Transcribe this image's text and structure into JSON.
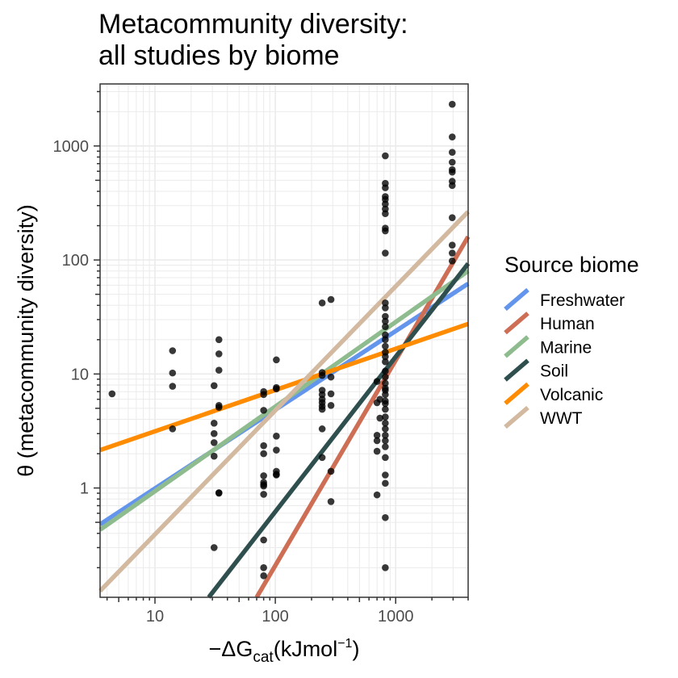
{
  "chart_data": {
    "type": "scatter",
    "title_line1": "Metacommunity diversity:",
    "title_line2": "all studies by biome",
    "xlabel": {
      "prefix": "−ΔG",
      "sub": "cat",
      "mid": "(kJmol",
      "sup": "−1",
      "suffix": ")"
    },
    "ylabel": "θ (metacommunity diversity)",
    "x_scale": "log10",
    "y_scale": "log10",
    "xlim": [
      3.5,
      4000
    ],
    "ylim": [
      0.11,
      3500
    ],
    "x_ticks": [
      10,
      100,
      1000
    ],
    "x_tick_labels": [
      "10",
      "100",
      "1000"
    ],
    "y_ticks": [
      1,
      10,
      100,
      1000
    ],
    "y_tick_labels": [
      "1",
      "10",
      "100",
      "1000"
    ],
    "grid": true,
    "legend_title": "Source biome",
    "legend_position": "right",
    "series": [
      {
        "name": "Freshwater",
        "color": "#6495ED",
        "line": [
          [
            3.5,
            0.48
          ],
          [
            4000,
            62
          ]
        ]
      },
      {
        "name": "Human",
        "color": "#CD6E55",
        "line": [
          [
            70,
            0.11
          ],
          [
            4000,
            160
          ]
        ]
      },
      {
        "name": "Marine",
        "color": "#8FBC8F",
        "line": [
          [
            3.5,
            0.43
          ],
          [
            4000,
            80
          ]
        ]
      },
      {
        "name": "Soil",
        "color": "#2F4F4F",
        "line": [
          [
            28,
            0.11
          ],
          [
            4000,
            93
          ]
        ]
      },
      {
        "name": "Volcanic",
        "color": "#FF8C00",
        "line": [
          [
            3.5,
            2.15
          ],
          [
            4000,
            27.5
          ]
        ]
      },
      {
        "name": "WWT",
        "color": "#D2B9A0",
        "line": [
          [
            3.5,
            0.125
          ],
          [
            4000,
            265
          ]
        ]
      }
    ],
    "points": [
      [
        4.4,
        6.7
      ],
      [
        14,
        16
      ],
      [
        14,
        10.2
      ],
      [
        14,
        7.8
      ],
      [
        14,
        3.3
      ],
      [
        31,
        7.9
      ],
      [
        31,
        3.7
      ],
      [
        31,
        3.0
      ],
      [
        31,
        2.5
      ],
      [
        31,
        1.9
      ],
      [
        31,
        0.3
      ],
      [
        34,
        20
      ],
      [
        34,
        15
      ],
      [
        34,
        10.8
      ],
      [
        34,
        5.3
      ],
      [
        34,
        5.1
      ],
      [
        34,
        0.91
      ],
      [
        34,
        0.9
      ],
      [
        80,
        7.0
      ],
      [
        80,
        6.6
      ],
      [
        80,
        4.8
      ],
      [
        80,
        2.35
      ],
      [
        80,
        2.0
      ],
      [
        80,
        1.28
      ],
      [
        80,
        1.12
      ],
      [
        80,
        1.07
      ],
      [
        80,
        1.04
      ],
      [
        80,
        0.88
      ],
      [
        80,
        0.35
      ],
      [
        80,
        0.2
      ],
      [
        80,
        0.17
      ],
      [
        102,
        13.3
      ],
      [
        102,
        7.6
      ],
      [
        102,
        7.4
      ],
      [
        102,
        2.85
      ],
      [
        102,
        2.15
      ],
      [
        102,
        1.4
      ],
      [
        102,
        1.32
      ],
      [
        102,
        1.3
      ],
      [
        245,
        42
      ],
      [
        245,
        10.3
      ],
      [
        245,
        9.7
      ],
      [
        245,
        7.2
      ],
      [
        245,
        6.6
      ],
      [
        245,
        6.0
      ],
      [
        245,
        5.6
      ],
      [
        245,
        5.2
      ],
      [
        245,
        4.9
      ],
      [
        245,
        3.3
      ],
      [
        245,
        1.85
      ],
      [
        290,
        45
      ],
      [
        290,
        9.4
      ],
      [
        290,
        6.7
      ],
      [
        290,
        5.3
      ],
      [
        290,
        1.4
      ],
      [
        290,
        0.76
      ],
      [
        700,
        8.6
      ],
      [
        700,
        5.6
      ],
      [
        700,
        2.9
      ],
      [
        700,
        2.6
      ],
      [
        700,
        2.1
      ],
      [
        700,
        0.87
      ],
      [
        740,
        6.0
      ],
      [
        740,
        4.1
      ],
      [
        820,
        820
      ],
      [
        820,
        470
      ],
      [
        820,
        430
      ],
      [
        820,
        360
      ],
      [
        820,
        340
      ],
      [
        820,
        310
      ],
      [
        820,
        280
      ],
      [
        820,
        255
      ],
      [
        820,
        190
      ],
      [
        820,
        180
      ],
      [
        820,
        115
      ],
      [
        820,
        42
      ],
      [
        820,
        38
      ],
      [
        820,
        32
      ],
      [
        820,
        29
      ],
      [
        820,
        26
      ],
      [
        820,
        22
      ],
      [
        820,
        20
      ],
      [
        820,
        17.5
      ],
      [
        820,
        15.5
      ],
      [
        820,
        14.2
      ],
      [
        820,
        12.8
      ],
      [
        820,
        10.6
      ],
      [
        820,
        9.4
      ],
      [
        820,
        8.3
      ],
      [
        820,
        7.5
      ],
      [
        820,
        7.2
      ],
      [
        820,
        6.6
      ],
      [
        820,
        5.8
      ],
      [
        820,
        5.5
      ],
      [
        820,
        4.9
      ],
      [
        820,
        4.2
      ],
      [
        820,
        3.7
      ],
      [
        820,
        3.3
      ],
      [
        820,
        2.9
      ],
      [
        820,
        2.6
      ],
      [
        820,
        2.3
      ],
      [
        820,
        1.85
      ],
      [
        820,
        1.3
      ],
      [
        820,
        1.1
      ],
      [
        820,
        0.55
      ],
      [
        820,
        0.2
      ],
      [
        2950,
        2320
      ],
      [
        2950,
        1200
      ],
      [
        2950,
        880
      ],
      [
        2950,
        720
      ],
      [
        2950,
        620
      ],
      [
        2950,
        590
      ],
      [
        2950,
        490
      ],
      [
        2950,
        450
      ],
      [
        2950,
        235
      ],
      [
        2950,
        135
      ],
      [
        2950,
        115
      ],
      [
        2950,
        98
      ]
    ]
  }
}
